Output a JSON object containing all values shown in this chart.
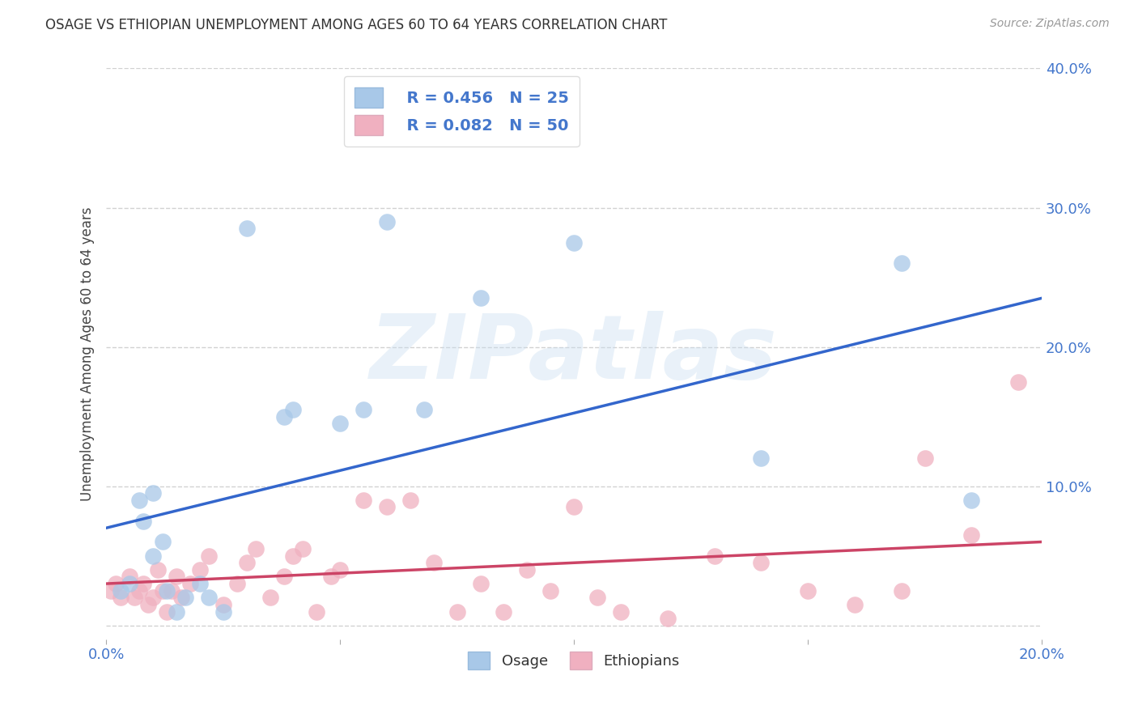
{
  "title": "OSAGE VS ETHIOPIAN UNEMPLOYMENT AMONG AGES 60 TO 64 YEARS CORRELATION CHART",
  "source": "Source: ZipAtlas.com",
  "ylabel": "Unemployment Among Ages 60 to 64 years",
  "xlim": [
    0.0,
    0.2
  ],
  "ylim": [
    -0.01,
    0.4
  ],
  "xticks": [
    0.0,
    0.05,
    0.1,
    0.15,
    0.2
  ],
  "yticks": [
    0.0,
    0.1,
    0.2,
    0.3,
    0.4
  ],
  "xticklabels": [
    "0.0%",
    "",
    "",
    "",
    "20.0%"
  ],
  "yticklabels": [
    "",
    "10.0%",
    "20.0%",
    "30.0%",
    "40.0%"
  ],
  "background_color": "#ffffff",
  "legend_R1": "R = 0.456",
  "legend_N1": "N = 25",
  "legend_R2": "R = 0.082",
  "legend_N2": "N = 50",
  "osage_color": "#a8c8e8",
  "ethiopian_color": "#f0b0c0",
  "osage_line_color": "#3366cc",
  "ethiopian_line_color": "#cc4466",
  "osage_x": [
    0.003,
    0.005,
    0.007,
    0.008,
    0.01,
    0.01,
    0.012,
    0.013,
    0.015,
    0.017,
    0.02,
    0.022,
    0.025,
    0.03,
    0.038,
    0.04,
    0.05,
    0.055,
    0.06,
    0.068,
    0.08,
    0.1,
    0.14,
    0.17,
    0.185
  ],
  "osage_y": [
    0.025,
    0.03,
    0.09,
    0.075,
    0.05,
    0.095,
    0.06,
    0.025,
    0.01,
    0.02,
    0.03,
    0.02,
    0.01,
    0.285,
    0.15,
    0.155,
    0.145,
    0.155,
    0.29,
    0.155,
    0.235,
    0.275,
    0.12,
    0.26,
    0.09
  ],
  "ethiopian_x": [
    0.001,
    0.002,
    0.003,
    0.005,
    0.006,
    0.007,
    0.008,
    0.009,
    0.01,
    0.011,
    0.012,
    0.013,
    0.014,
    0.015,
    0.016,
    0.018,
    0.02,
    0.022,
    0.025,
    0.028,
    0.03,
    0.032,
    0.035,
    0.038,
    0.04,
    0.042,
    0.045,
    0.048,
    0.05,
    0.055,
    0.06,
    0.065,
    0.07,
    0.075,
    0.08,
    0.085,
    0.09,
    0.095,
    0.1,
    0.105,
    0.11,
    0.12,
    0.13,
    0.14,
    0.15,
    0.16,
    0.17,
    0.175,
    0.185,
    0.195
  ],
  "ethiopian_y": [
    0.025,
    0.03,
    0.02,
    0.035,
    0.02,
    0.025,
    0.03,
    0.015,
    0.02,
    0.04,
    0.025,
    0.01,
    0.025,
    0.035,
    0.02,
    0.03,
    0.04,
    0.05,
    0.015,
    0.03,
    0.045,
    0.055,
    0.02,
    0.035,
    0.05,
    0.055,
    0.01,
    0.035,
    0.04,
    0.09,
    0.085,
    0.09,
    0.045,
    0.01,
    0.03,
    0.01,
    0.04,
    0.025,
    0.085,
    0.02,
    0.01,
    0.005,
    0.05,
    0.045,
    0.025,
    0.015,
    0.025,
    0.12,
    0.065,
    0.175
  ],
  "blue_line_x0": 0.0,
  "blue_line_y0": 0.07,
  "blue_line_x1": 0.2,
  "blue_line_y1": 0.235,
  "pink_line_x0": 0.0,
  "pink_line_y0": 0.03,
  "pink_line_x1": 0.2,
  "pink_line_y1": 0.06
}
